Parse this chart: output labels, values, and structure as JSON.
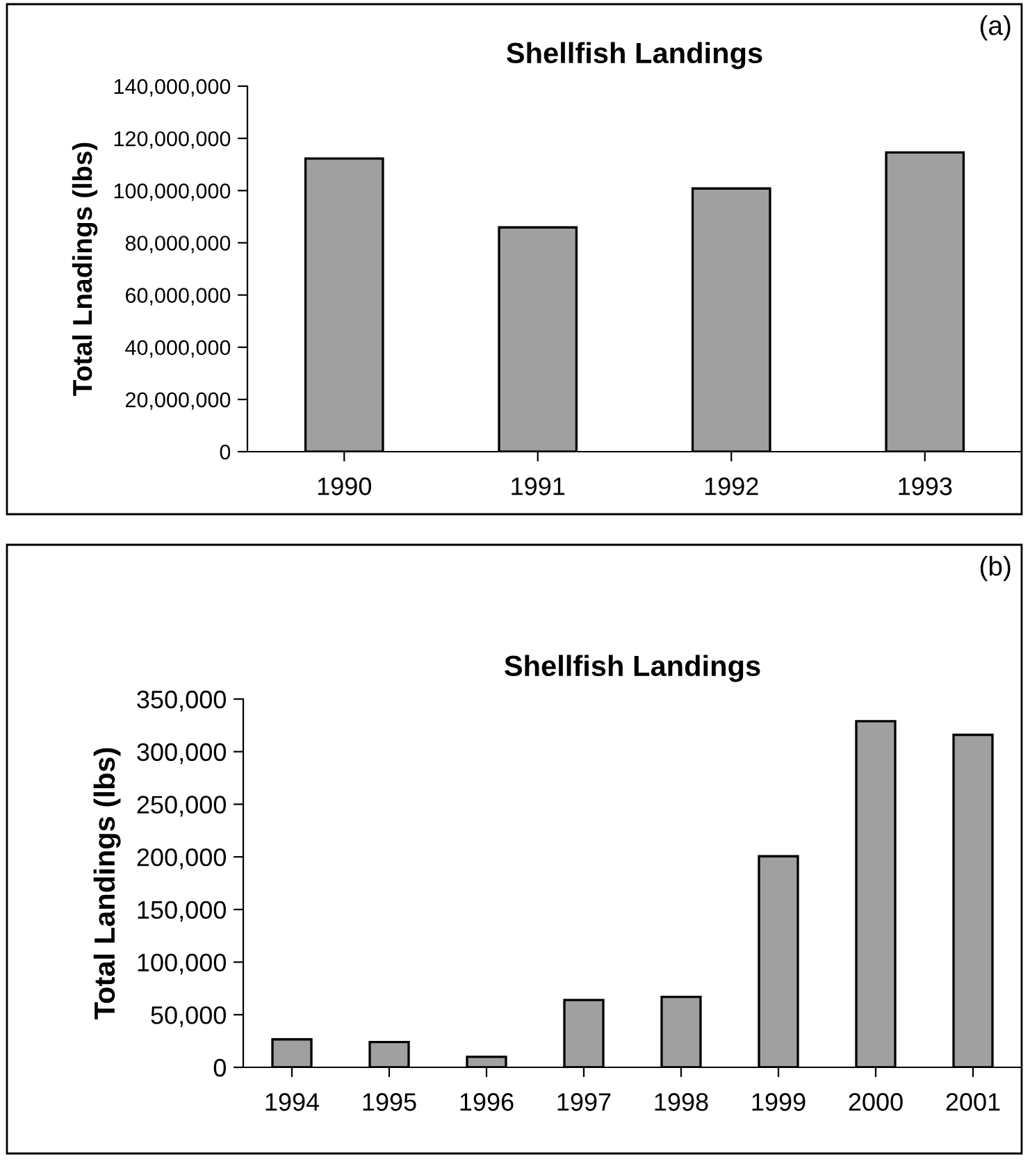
{
  "chart_data": [
    {
      "type": "bar",
      "title": "Shellfish Landings",
      "ylabel": "Total Lnadings (lbs)",
      "annotations": [
        "(a)"
      ],
      "categories": [
        "1990",
        "1991",
        "1992",
        "1993"
      ],
      "series": [
        {
          "color": "#a0a0a0",
          "values": [
            112300000,
            85900000,
            100800000,
            114600000
          ]
        }
      ],
      "ylim": [
        0,
        140000000
      ],
      "yticks": [
        {
          "value": 0,
          "label": "0"
        },
        {
          "value": 20000000,
          "label": "20,000,000"
        },
        {
          "value": 40000000,
          "label": "40,000,000"
        },
        {
          "value": 60000000,
          "label": "60,000,000"
        },
        {
          "value": 80000000,
          "label": "80,000,000"
        },
        {
          "value": 100000000,
          "label": "100,000,000"
        },
        {
          "value": 120000000,
          "label": "120,000,000"
        },
        {
          "value": 140000000,
          "label": "140,000,000"
        }
      ],
      "grid": false,
      "legend": false
    },
    {
      "type": "bar",
      "title": "Shellfish Landings",
      "ylabel": "Total Landings (lbs)",
      "annotations": [
        "(b)"
      ],
      "categories": [
        "1994",
        "1995",
        "1996",
        "1997",
        "1998",
        "1999",
        "2000",
        "2001"
      ],
      "series": [
        {
          "color": "#a0a0a0",
          "values": [
            26600,
            24000,
            10000,
            64000,
            67000,
            200600,
            329000,
            316000
          ]
        }
      ],
      "ylim": [
        0,
        350000
      ],
      "yticks": [
        {
          "value": 0,
          "label": "0"
        },
        {
          "value": 50000,
          "label": "50,000"
        },
        {
          "value": 100000,
          "label": "100,000"
        },
        {
          "value": 150000,
          "label": "150,000"
        },
        {
          "value": 200000,
          "label": "200,000"
        },
        {
          "value": 250000,
          "label": "250,000"
        },
        {
          "value": 300000,
          "label": "300,000"
        },
        {
          "value": 350000,
          "label": "350,000"
        }
      ],
      "grid": false,
      "legend": false
    }
  ]
}
